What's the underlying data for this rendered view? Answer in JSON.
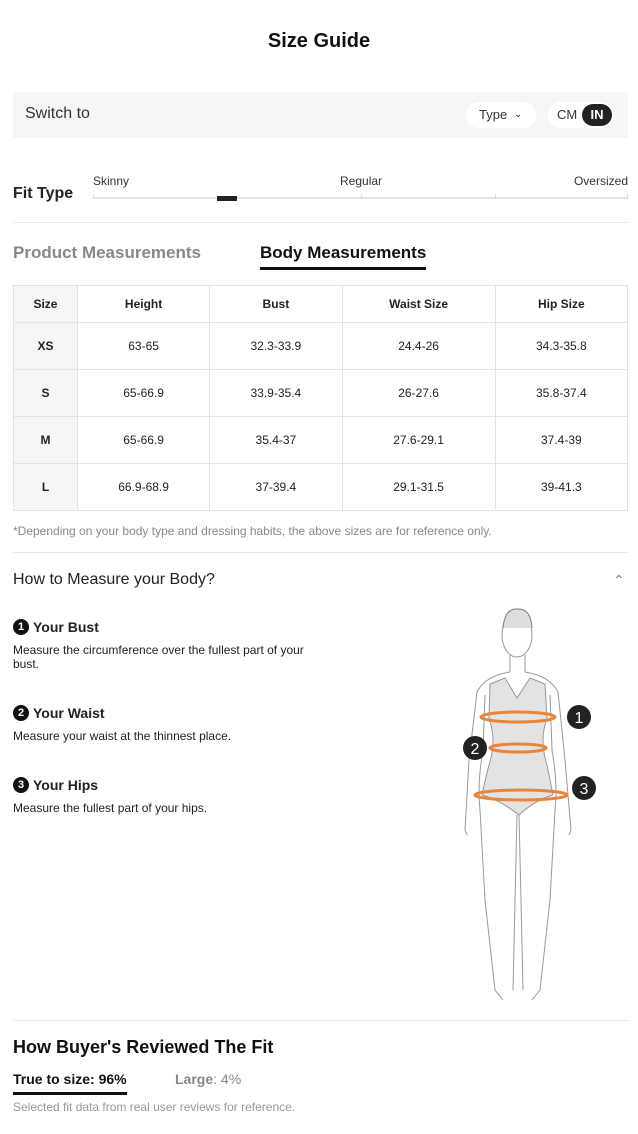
{
  "title": "Size Guide",
  "switch": {
    "label": "Switch to",
    "type_label": "Type",
    "units": [
      "CM",
      "IN"
    ],
    "selected_unit": "IN"
  },
  "fit": {
    "label": "Fit Type",
    "options": [
      "Skinny",
      "Regular",
      "Oversized"
    ],
    "position": 0.25
  },
  "tabs": [
    {
      "label": "Product Measurements",
      "active": false
    },
    {
      "label": "Body Measurements",
      "active": true
    }
  ],
  "table": {
    "headers": [
      "Size",
      "Height",
      "Bust",
      "Waist Size",
      "Hip Size"
    ],
    "rows": [
      [
        "XS",
        "63-65",
        "32.3-33.9",
        "24.4-26",
        "34.3-35.8"
      ],
      [
        "S",
        "65-66.9",
        "33.9-35.4",
        "26-27.6",
        "35.8-37.4"
      ],
      [
        "M",
        "65-66.9",
        "35.4-37",
        "27.6-29.1",
        "37.4-39"
      ],
      [
        "L",
        "66.9-68.9",
        "37-39.4",
        "29.1-31.5",
        "39-41.3"
      ]
    ]
  },
  "note": "*Depending on your body type and dressing habits, the above sizes are for reference only.",
  "howto": {
    "title": "How to Measure your Body?",
    "items": [
      {
        "num": "1",
        "title": "Your Bust",
        "desc": "Measure the circumference over the fullest part of your bust."
      },
      {
        "num": "2",
        "title": "Your Waist",
        "desc": "Measure your waist at the thinnest place."
      },
      {
        "num": "3",
        "title": "Your Hips",
        "desc": "Measure the fullest part of your hips."
      }
    ]
  },
  "reviews": {
    "title": "How Buyer's Reviewed The Fit",
    "true_to_size": "True to size: 96%",
    "large_label": "Large",
    "large_value": ": 4%",
    "note": "Selected fit data from real user reviews for reference."
  },
  "colors": {
    "accent": "#e8853a",
    "dark": "#222222"
  }
}
